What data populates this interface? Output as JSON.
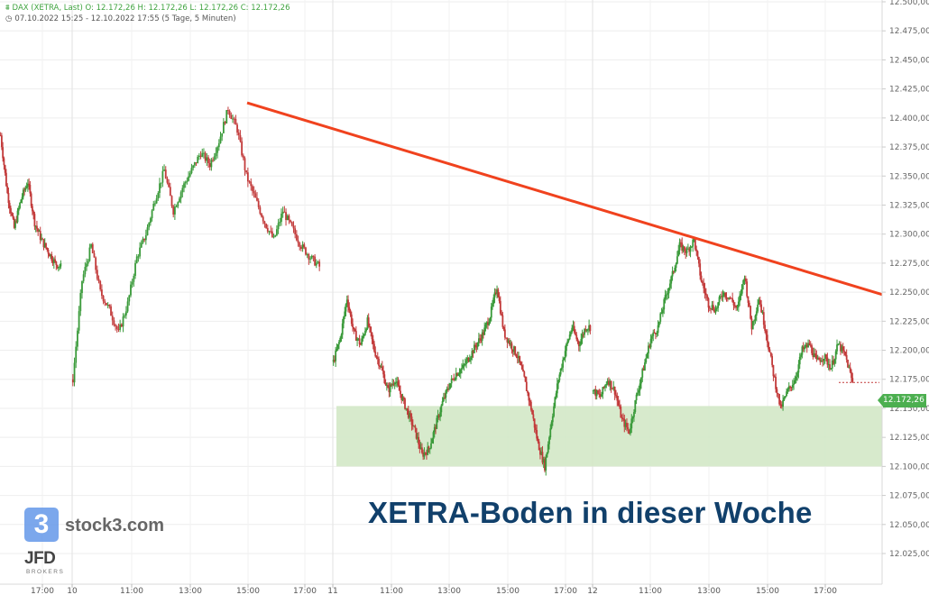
{
  "header": {
    "line1": "DAX (XETRA, Last)  O: 12.172,26  H: 12.172,26  L: 12.172,26  C: 12.172,26",
    "line2": "07.10.2022 15:25 - 12.10.2022 17:55   (5 Tage, 5 Minuten)"
  },
  "overlay_title": "XETRA-Boden in dieser Woche",
  "watermark": {
    "logo_glyph": "3",
    "brand": "stock3.com",
    "broker": "JFD",
    "broker_sub": "BROKERS"
  },
  "colors": {
    "up": "#3a9a3a",
    "down": "#c23a3a",
    "trendline": "#f0421e",
    "support_zone": "#d3e8c6",
    "label_bg": "#4caf50",
    "title": "#11406b"
  },
  "chart_data": {
    "type": "candlestick",
    "title": "",
    "symbol": "DAX (XETRA, Last)",
    "interval": "5 Minuten",
    "ylim": [
      12020,
      12510
    ],
    "y_ticks": [
      12025,
      12050,
      12075,
      12100,
      12125,
      12150,
      12175,
      12200,
      12225,
      12250,
      12275,
      12300,
      12325,
      12350,
      12375,
      12400,
      12425,
      12450,
      12475,
      12500
    ],
    "y_tick_labels": [
      "12.025,00",
      "12.050,00",
      "12.075,00",
      "12.100,00",
      "12.125,00",
      "12.150,00",
      "12.175,00",
      "12.200,00",
      "12.225,00",
      "12.250,00",
      "12.275,00",
      "12.300,00",
      "12.325,00",
      "12.350,00",
      "12.375,00",
      "12.400,00",
      "12.425,00",
      "12.450,00",
      "12.475,00",
      "12.500,00"
    ],
    "x_tick_labels": [
      "17:00",
      "10",
      "11:00",
      "13:00",
      "15:00",
      "17:00",
      "11",
      "11:00",
      "13:00",
      "15:00",
      "17:00",
      "12",
      "11:00",
      "13:00",
      "15:00",
      "17:00"
    ],
    "sessions": [
      {
        "label": "07.10.2022",
        "anchors": [
          [
            0,
            12385
          ],
          [
            6,
            12335
          ],
          [
            12,
            12305
          ],
          [
            18,
            12330
          ],
          [
            24,
            12345
          ],
          [
            30,
            12310
          ],
          [
            36,
            12295
          ],
          [
            42,
            12285
          ],
          [
            48,
            12275
          ],
          [
            53,
            12272
          ]
        ]
      },
      {
        "label": "10.10.2022",
        "anchors": [
          [
            0,
            12175
          ],
          [
            6,
            12260
          ],
          [
            12,
            12290
          ],
          [
            18,
            12250
          ],
          [
            24,
            12235
          ],
          [
            30,
            12215
          ],
          [
            36,
            12240
          ],
          [
            42,
            12280
          ],
          [
            48,
            12300
          ],
          [
            54,
            12330
          ],
          [
            60,
            12355
          ],
          [
            66,
            12320
          ],
          [
            72,
            12340
          ],
          [
            78,
            12355
          ],
          [
            84,
            12370
          ],
          [
            90,
            12360
          ],
          [
            96,
            12380
          ],
          [
            102,
            12408
          ],
          [
            108,
            12390
          ],
          [
            114,
            12350
          ],
          [
            120,
            12330
          ],
          [
            126,
            12310
          ],
          [
            132,
            12295
          ],
          [
            138,
            12320
          ],
          [
            144,
            12305
          ],
          [
            150,
            12290
          ],
          [
            156,
            12280
          ],
          [
            162,
            12272
          ]
        ]
      },
      {
        "label": "11.10.2022",
        "anchors": [
          [
            0,
            12190
          ],
          [
            6,
            12210
          ],
          [
            12,
            12245
          ],
          [
            18,
            12215
          ],
          [
            24,
            12205
          ],
          [
            30,
            12225
          ],
          [
            36,
            12200
          ],
          [
            42,
            12185
          ],
          [
            48,
            12165
          ],
          [
            54,
            12175
          ],
          [
            60,
            12160
          ],
          [
            66,
            12145
          ],
          [
            72,
            12130
          ],
          [
            78,
            12110
          ],
          [
            84,
            12115
          ],
          [
            90,
            12135
          ],
          [
            96,
            12155
          ],
          [
            102,
            12170
          ],
          [
            108,
            12180
          ],
          [
            114,
            12185
          ],
          [
            120,
            12195
          ],
          [
            126,
            12205
          ],
          [
            132,
            12215
          ],
          [
            138,
            12230
          ],
          [
            144,
            12255
          ],
          [
            150,
            12215
          ],
          [
            156,
            12205
          ],
          [
            162,
            12195
          ],
          [
            168,
            12175
          ],
          [
            174,
            12150
          ],
          [
            180,
            12120
          ],
          [
            186,
            12100
          ],
          [
            192,
            12140
          ],
          [
            198,
            12175
          ],
          [
            204,
            12200
          ],
          [
            210,
            12220
          ],
          [
            216,
            12205
          ],
          [
            222,
            12220
          ],
          [
            226,
            12220
          ]
        ]
      },
      {
        "label": "12.10.2022",
        "anchors": [
          [
            0,
            12165
          ],
          [
            6,
            12160
          ],
          [
            12,
            12175
          ],
          [
            18,
            12165
          ],
          [
            24,
            12140
          ],
          [
            30,
            12130
          ],
          [
            36,
            12160
          ],
          [
            42,
            12185
          ],
          [
            48,
            12210
          ],
          [
            54,
            12220
          ],
          [
            60,
            12245
          ],
          [
            66,
            12265
          ],
          [
            72,
            12290
          ],
          [
            78,
            12285
          ],
          [
            84,
            12295
          ],
          [
            90,
            12260
          ],
          [
            96,
            12240
          ],
          [
            102,
            12235
          ],
          [
            108,
            12250
          ],
          [
            114,
            12245
          ],
          [
            120,
            12235
          ],
          [
            126,
            12265
          ],
          [
            132,
            12220
          ],
          [
            138,
            12245
          ],
          [
            144,
            12215
          ],
          [
            150,
            12180
          ],
          [
            156,
            12150
          ],
          [
            162,
            12165
          ],
          [
            168,
            12175
          ],
          [
            174,
            12200
          ],
          [
            180,
            12205
          ],
          [
            186,
            12190
          ],
          [
            192,
            12195
          ],
          [
            198,
            12185
          ],
          [
            204,
            12205
          ],
          [
            210,
            12195
          ],
          [
            216,
            12172
          ]
        ]
      }
    ],
    "trendline": {
      "from": {
        "time": "10.10.2022 15:00",
        "y": 12413
      },
      "to": {
        "time": "12.10.2022 19:10",
        "y": 12248
      }
    },
    "support_zone": {
      "y_low": 12100,
      "y_high": 12152,
      "from": "11.10.2022 09:00"
    },
    "last_value": 12172.26,
    "last_label": "12.172,26",
    "grid": true
  }
}
